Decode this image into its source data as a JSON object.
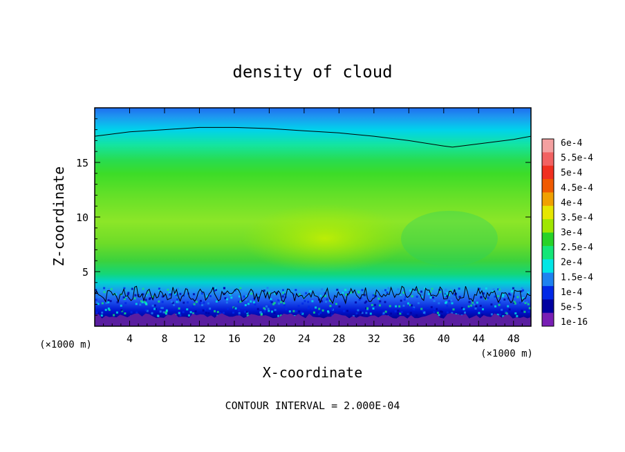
{
  "chart_data": {
    "type": "heatmap",
    "title": "density of cloud",
    "xlabel": "X-coordinate",
    "ylabel": "Z-coordinate",
    "x_unit": "(×1000 m)",
    "y_unit": "(×1000 m)",
    "xlim": [
      0,
      50
    ],
    "ylim": [
      0,
      20
    ],
    "x_ticks": [
      4,
      8,
      12,
      16,
      20,
      24,
      28,
      32,
      36,
      40,
      44,
      48
    ],
    "y_ticks": [
      5,
      10,
      15
    ],
    "footer": "CONTOUR INTERVAL = 2.000E-04",
    "contour_interval": 0.0002,
    "colorbar": {
      "levels": [
        "6e-4",
        "5.5e-4",
        "5e-4",
        "4.5e-4",
        "4e-4",
        "3.5e-4",
        "3e-4",
        "2.5e-4",
        "2e-4",
        "1.5e-4",
        "1e-4",
        "5e-5",
        "1e-16"
      ],
      "colors": [
        "#f4a0a0",
        "#f26262",
        "#f03020",
        "#f05a00",
        "#f0a000",
        "#e6e600",
        "#a0e600",
        "#28d228",
        "#14e678",
        "#00e6e6",
        "#1e82f0",
        "#0028e6",
        "#0000a0",
        "#781eb4"
      ]
    },
    "top_contour_z": [
      [
        0,
        17.4
      ],
      [
        4,
        17.8
      ],
      [
        8,
        18.0
      ],
      [
        12,
        18.2
      ],
      [
        16,
        18.2
      ],
      [
        20,
        18.1
      ],
      [
        24,
        17.9
      ],
      [
        28,
        17.7
      ],
      [
        32,
        17.4
      ],
      [
        36,
        17.0
      ],
      [
        40,
        16.5
      ],
      [
        41,
        16.4
      ],
      [
        44,
        16.7
      ],
      [
        48,
        17.1
      ],
      [
        50,
        17.4
      ]
    ],
    "lower_contour_z_mean": 2.9
  }
}
